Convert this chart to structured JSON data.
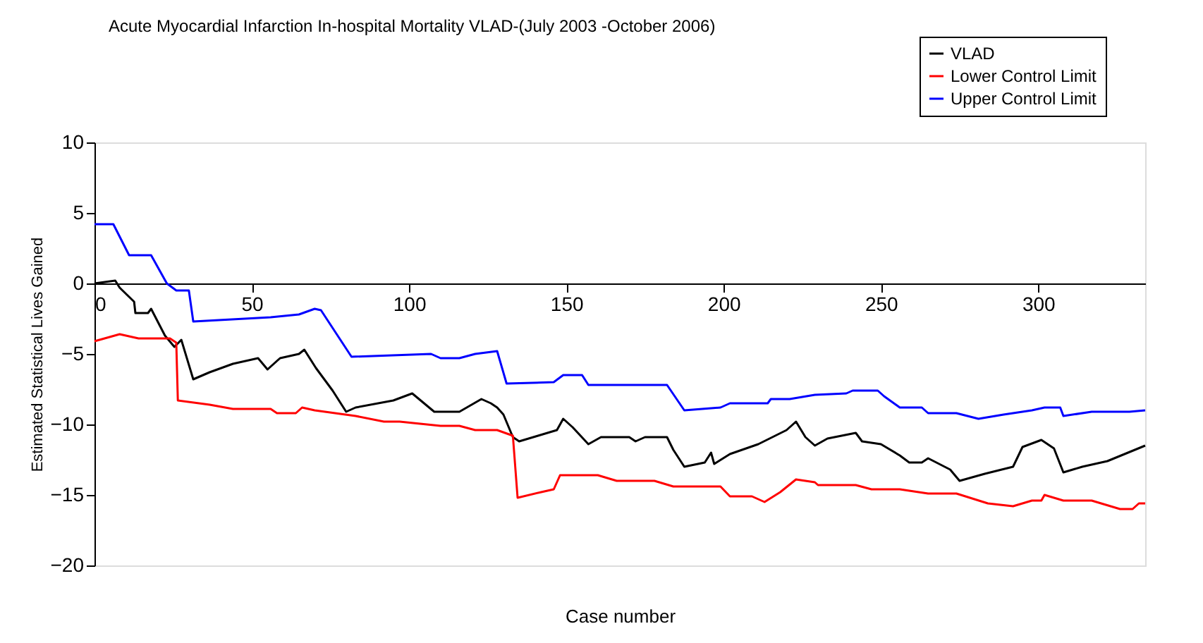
{
  "chart_data": {
    "type": "line",
    "title": "Acute Myocardial Infarction In-hospital Mortality VLAD-(July 2003 -October 2006)",
    "xlabel": "Case number",
    "ylabel": "Estimated Statistical Lives Gained",
    "xlim": [
      0,
      334
    ],
    "ylim": [
      -20,
      10
    ],
    "xticks": [
      0,
      50,
      100,
      150,
      200,
      250,
      300
    ],
    "yticks": [
      -20,
      -15,
      -10,
      -5,
      0,
      5,
      10
    ],
    "grid": false,
    "legend": "top right",
    "marker": "none",
    "line_style": "solid",
    "series": [
      {
        "name": "VLAD",
        "color": "#000000",
        "x": [
          0,
          6.6,
          8,
          12.6,
          13,
          17,
          18,
          22.4,
          25.4,
          27.6,
          31.4,
          36.6,
          44,
          52,
          55,
          59,
          65,
          66.7,
          70.4,
          75.7,
          80,
          83,
          95,
          101,
          108,
          116,
          123,
          126,
          128,
          130,
          133,
          135,
          141,
          147,
          149,
          152,
          157,
          161,
          170,
          172,
          175,
          182,
          184,
          187.5,
          194,
          196,
          197,
          202,
          211,
          220,
          223,
          226,
          229,
          233,
          242,
          244,
          250,
          256,
          259,
          263,
          265,
          272,
          275,
          283,
          292,
          295,
          301,
          305,
          308,
          314,
          322,
          334
        ],
        "values": [
          0,
          0.2,
          -0.3,
          -1.3,
          -2.1,
          -2.1,
          -1.8,
          -3.7,
          -4.5,
          -4.0,
          -6.8,
          -6.3,
          -5.7,
          -5.3,
          -6.1,
          -5.3,
          -5.0,
          -4.7,
          -6.0,
          -7.6,
          -9.1,
          -8.8,
          -8.3,
          -7.8,
          -9.1,
          -9.1,
          -8.2,
          -8.5,
          -8.8,
          -9.3,
          -10.9,
          -11.2,
          -10.8,
          -10.4,
          -9.6,
          -10.2,
          -11.4,
          -10.9,
          -10.9,
          -11.2,
          -10.9,
          -10.9,
          -11.8,
          -13.0,
          -12.7,
          -12.0,
          -12.8,
          -12.1,
          -11.4,
          -10.4,
          -9.8,
          -10.9,
          -11.5,
          -11.0,
          -10.6,
          -11.2,
          -11.4,
          -12.2,
          -12.7,
          -12.7,
          -12.4,
          -13.2,
          -14.0,
          -13.5,
          -13.0,
          -11.6,
          -11.1,
          -11.7,
          -13.4,
          -13.0,
          -12.6,
          -11.5
        ]
      },
      {
        "name": "Lower Control Limit",
        "color": "#ff0000",
        "x": [
          0,
          8,
          14,
          24,
          26,
          26.5,
          36.6,
          44,
          56,
          58,
          64,
          66,
          70,
          83,
          92,
          97,
          110,
          116,
          121,
          128,
          133,
          134.5,
          142,
          146,
          148,
          160,
          166,
          178,
          184,
          199,
          202,
          209,
          213,
          218,
          223,
          229,
          230,
          242,
          247,
          256,
          265,
          274,
          284,
          292,
          298,
          301,
          302,
          308,
          317,
          326,
          330,
          332,
          334
        ],
        "values": [
          -4.1,
          -3.6,
          -3.9,
          -3.9,
          -4.2,
          -8.3,
          -8.6,
          -8.9,
          -8.9,
          -9.2,
          -9.2,
          -8.8,
          -9.0,
          -9.4,
          -9.8,
          -9.8,
          -10.1,
          -10.1,
          -10.4,
          -10.4,
          -10.8,
          -15.2,
          -14.8,
          -14.6,
          -13.6,
          -13.6,
          -14.0,
          -14.0,
          -14.4,
          -14.4,
          -15.1,
          -15.1,
          -15.5,
          -14.8,
          -13.9,
          -14.1,
          -14.3,
          -14.3,
          -14.6,
          -14.6,
          -14.9,
          -14.9,
          -15.6,
          -15.8,
          -15.4,
          -15.4,
          -15.0,
          -15.4,
          -15.4,
          -16.0,
          -16.0,
          -15.6,
          -15.6
        ]
      },
      {
        "name": "Upper Control Limit",
        "color": "#0000ff",
        "x": [
          0,
          6,
          11,
          13,
          18,
          20,
          23,
          26,
          30,
          31.4,
          56,
          65,
          70,
          72,
          81.7,
          107,
          110,
          116,
          121,
          128,
          131,
          146,
          149,
          155,
          157,
          164,
          182,
          187.5,
          199,
          202,
          214,
          215,
          221,
          229,
          239,
          241,
          249,
          251,
          256,
          263,
          265,
          274,
          281,
          289,
          298,
          302,
          307,
          308,
          317,
          329,
          334
        ],
        "values": [
          4.2,
          4.2,
          2.0,
          2.0,
          2.0,
          1.2,
          0,
          -0.5,
          -0.5,
          -2.7,
          -2.4,
          -2.2,
          -1.8,
          -1.9,
          -5.2,
          -5.0,
          -5.3,
          -5.3,
          -5.0,
          -4.8,
          -7.1,
          -7.0,
          -6.5,
          -6.5,
          -7.2,
          -7.2,
          -7.2,
          -9.0,
          -8.8,
          -8.5,
          -8.5,
          -8.2,
          -8.2,
          -7.9,
          -7.8,
          -7.6,
          -7.6,
          -8.0,
          -8.8,
          -8.8,
          -9.2,
          -9.2,
          -9.6,
          -9.3,
          -9.0,
          -8.8,
          -8.8,
          -9.4,
          -9.1,
          -9.1,
          -9.0
        ]
      }
    ]
  }
}
